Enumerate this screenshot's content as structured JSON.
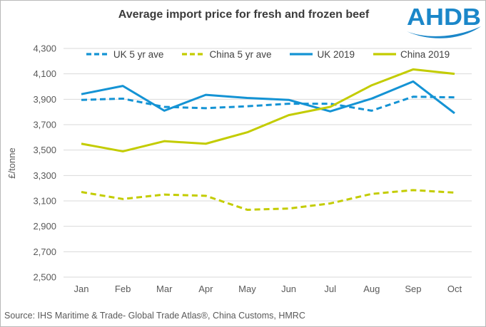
{
  "header": {
    "title": "Average import price for fresh and frozen beef",
    "logo_text": "AHDB"
  },
  "chart_data": {
    "type": "line",
    "title": "Average import price for fresh and frozen beef",
    "xlabel": "",
    "ylabel": "£/tonne",
    "categories": [
      "Jan",
      "Feb",
      "Mar",
      "Apr",
      "May",
      "Jun",
      "Jul",
      "Aug",
      "Sep",
      "Oct"
    ],
    "ylim": [
      2500,
      4300
    ],
    "ytick_step": 200,
    "yticks": [
      2500,
      2700,
      2900,
      3100,
      3300,
      3500,
      3700,
      3900,
      4100,
      4300
    ],
    "ytick_labels": [
      "2,500",
      "2,700",
      "2,900",
      "3,100",
      "3,300",
      "3,500",
      "3,700",
      "3,900",
      "4,100",
      "4,300"
    ],
    "grid": "horizontal-only",
    "legend_position": "top",
    "series": [
      {
        "name": "UK 5 yr ave",
        "style": "dashed",
        "color": "#1493d4",
        "values": [
          3895,
          3905,
          3840,
          3830,
          3845,
          3865,
          3865,
          3810,
          3920,
          3915
        ]
      },
      {
        "name": "China 5 yr ave",
        "style": "dashed",
        "color": "#c3cc00",
        "values": [
          3170,
          3115,
          3150,
          3140,
          3030,
          3040,
          3080,
          3155,
          3185,
          3165
        ]
      },
      {
        "name": "UK 2019",
        "style": "solid",
        "color": "#1493d4",
        "values": [
          3940,
          4005,
          3810,
          3935,
          3910,
          3895,
          3805,
          3905,
          4040,
          3790
        ]
      },
      {
        "name": "China 2019",
        "style": "solid",
        "color": "#c3cc00",
        "values": [
          3550,
          3490,
          3570,
          3550,
          3640,
          3775,
          3840,
          4010,
          4135,
          4100
        ]
      }
    ]
  },
  "footer": {
    "source": "Source: IHS Maritime & Trade- Global Trade Atlas®, China Customs, HMRC"
  },
  "colors": {
    "accent_blue": "#1493d4",
    "accent_green": "#c3cc00",
    "logo_blue": "#1b87c9",
    "gridline": "#d9d9d9",
    "axis_text": "#595959",
    "title_text": "#3b3b3b"
  }
}
